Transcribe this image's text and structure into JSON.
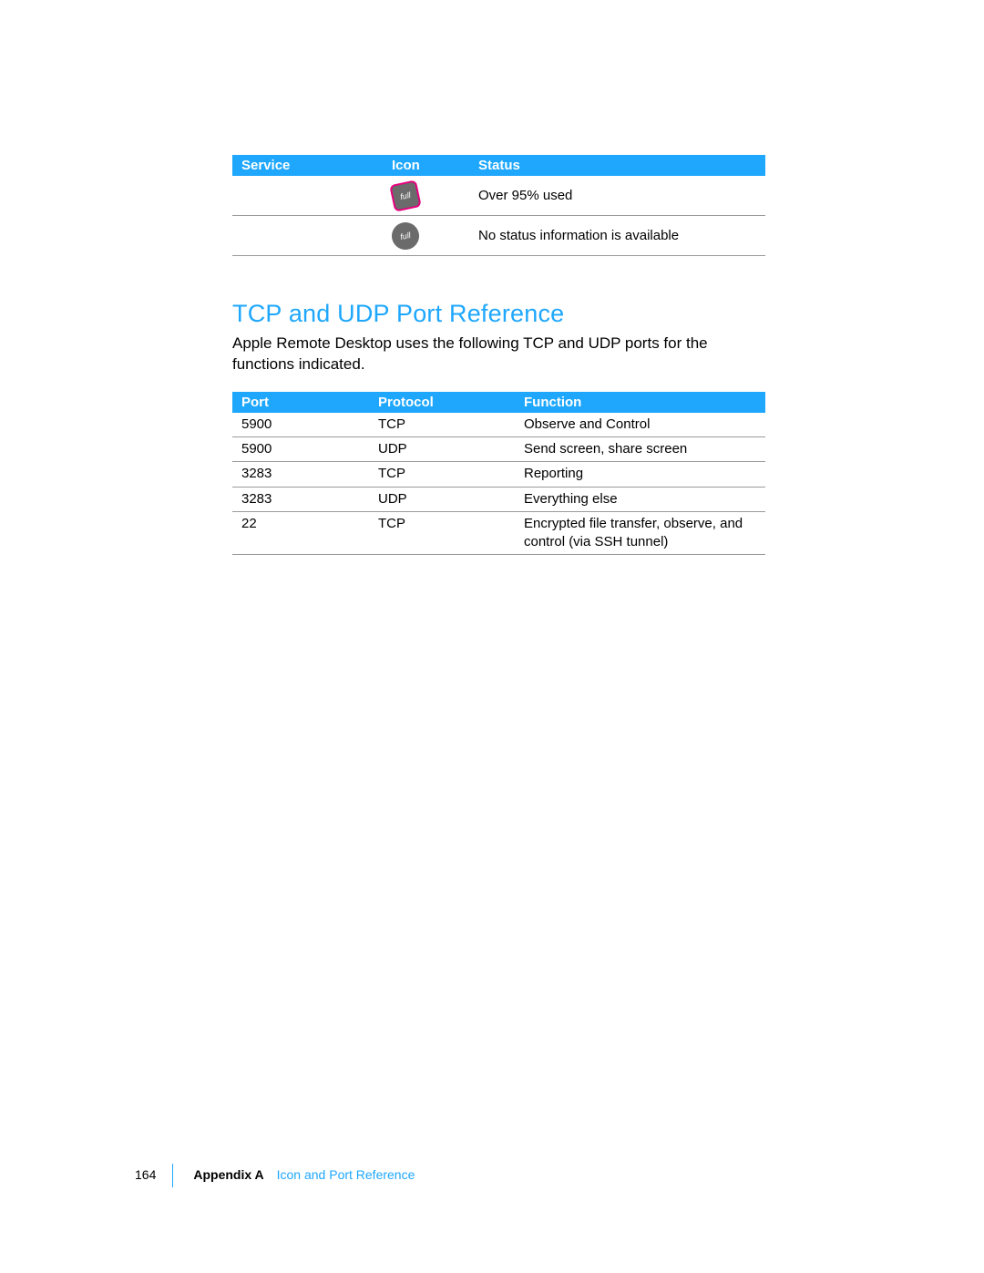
{
  "status_table": {
    "header_bg": "#1ea7fd",
    "header_fg": "#ffffff",
    "border_color": "#9a9a9a",
    "columns": {
      "service": "Service",
      "icon": "Icon",
      "status": "Status"
    },
    "rows": [
      {
        "service": "",
        "icon": "disk-red",
        "status": "Over 95% used"
      },
      {
        "service": "",
        "icon": "disk-gray",
        "status": "No status information is available"
      }
    ]
  },
  "section": {
    "title": "TCP and UDP Port Reference",
    "title_color": "#1ea7fd",
    "body": "Apple Remote Desktop uses the following TCP and UDP ports for the functions indicated."
  },
  "port_table": {
    "header_bg": "#1ea7fd",
    "header_fg": "#ffffff",
    "border_color": "#9a9a9a",
    "columns": {
      "port": "Port",
      "protocol": "Protocol",
      "function": "Function"
    },
    "rows": [
      {
        "port": "5900",
        "protocol": "TCP",
        "function": "Observe and Control"
      },
      {
        "port": "5900",
        "protocol": "UDP",
        "function": "Send screen, share screen"
      },
      {
        "port": "3283",
        "protocol": "TCP",
        "function": "Reporting"
      },
      {
        "port": "3283",
        "protocol": "UDP",
        "function": "Everything else"
      },
      {
        "port": "22",
        "protocol": "TCP",
        "function": "Encrypted file transfer, observe, and control (via SSH tunnel)"
      }
    ]
  },
  "footer": {
    "page_number": "164",
    "appendix_label": "Appendix A",
    "appendix_title": "Icon and Port Reference",
    "rule_color": "#1ea7fd"
  }
}
